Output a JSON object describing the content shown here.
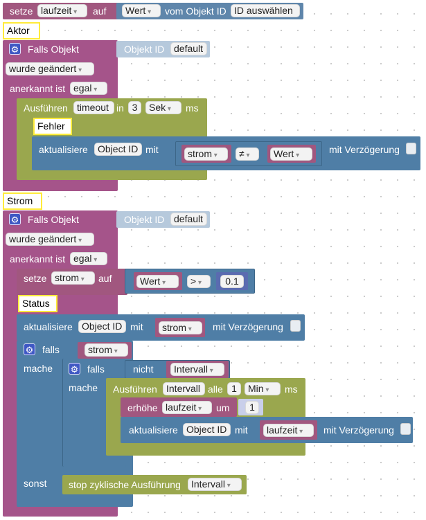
{
  "top_block": {
    "set": "setze",
    "var": "laufzeit",
    "on": "auf",
    "value": "Wert",
    "from": "vom Objekt ID",
    "select": "ID auswählen"
  },
  "comment_aktor": "Aktor",
  "trigger1": {
    "title": "Falls Objekt",
    "objid_label": "Objekt ID",
    "objid_value": "default",
    "changed": "wurde geändert",
    "ack_label": "anerkannt ist",
    "ack_value": "egal"
  },
  "timeout_block": {
    "run": "Ausführen",
    "name": "timeout",
    "in": "in",
    "value": "3",
    "unit": "Sek",
    "ms": "ms"
  },
  "comment_fehler": "Fehler",
  "update1": {
    "label": "aktualisiere",
    "objid": "Object ID",
    "with": "mit",
    "compare_left": "strom",
    "operator": "≠",
    "compare_right": "Wert",
    "delay": "mit Verzögerung"
  },
  "comment_strom": "Strom",
  "trigger2": {
    "title": "Falls Objekt",
    "objid_label": "Objekt ID",
    "objid_value": "default",
    "changed": "wurde geändert",
    "ack_label": "anerkannt ist",
    "ack_value": "egal"
  },
  "set_strom": {
    "set": "setze",
    "var": "strom",
    "on": "auf",
    "value": "Wert",
    "op": ">",
    "num": "0.1"
  },
  "comment_status": "Status",
  "update2": {
    "label": "aktualisiere",
    "objid": "Object ID",
    "with": "mit",
    "var": "strom",
    "delay": "mit Verzögerung"
  },
  "if_outer": {
    "if": "falls",
    "cond": "strom",
    "do": "mache",
    "else": "sonst"
  },
  "if_inner": {
    "if": "falls",
    "not": "nicht",
    "cond": "Intervall",
    "do": "mache"
  },
  "interval_block": {
    "run": "Ausführen",
    "name": "Intervall",
    "every": "alle",
    "value": "1",
    "unit": "Min",
    "ms": "ms"
  },
  "increase": {
    "label": "erhöhe",
    "var": "laufzeit",
    "by": "um",
    "value": "1"
  },
  "update3": {
    "label": "aktualisiere",
    "objid": "Object ID",
    "with": "mit",
    "var": "laufzeit",
    "delay": "mit Verzögerung"
  },
  "stop_block": {
    "label": "stop zyklische Ausführung",
    "name": "Intervall"
  },
  "colors": {
    "event": "#a5548a",
    "control": "#4f7ea6",
    "timer": "#9aa74e",
    "variable": "#a1577f",
    "math": "#5a6bb0",
    "comment_border": "#ffeb3b"
  }
}
